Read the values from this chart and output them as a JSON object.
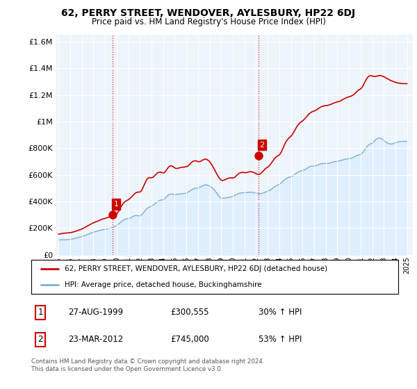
{
  "title": "62, PERRY STREET, WENDOVER, AYLESBURY, HP22 6DJ",
  "subtitle": "Price paid vs. HM Land Registry's House Price Index (HPI)",
  "hpi_line_color": "#7bafd4",
  "hpi_fill_color": "#ddeeff",
  "price_line_color": "#cc0000",
  "marker_color": "#cc0000",
  "background_color": "#ffffff",
  "plot_bg_color": "#eef4fb",
  "grid_color": "#ffffff",
  "ylim": [
    0,
    1650000
  ],
  "yticks": [
    0,
    200000,
    400000,
    600000,
    800000,
    1000000,
    1200000,
    1400000,
    1600000
  ],
  "ytick_labels": [
    "£0",
    "£200K",
    "£400K",
    "£600K",
    "£800K",
    "£1M",
    "£1.2M",
    "£1.4M",
    "£1.6M"
  ],
  "sale1_year": 1999.65,
  "sale1_price": 300555,
  "sale2_year": 2012.22,
  "sale2_price": 745000,
  "legend_line1": "62, PERRY STREET, WENDOVER, AYLESBURY, HP22 6DJ (detached house)",
  "legend_line2": "HPI: Average price, detached house, Buckinghamshire",
  "table_rows": [
    {
      "num": "1",
      "date": "27-AUG-1999",
      "price": "£300,555",
      "hpi": "30% ↑ HPI"
    },
    {
      "num": "2",
      "date": "23-MAR-2012",
      "price": "£745,000",
      "hpi": "53% ↑ HPI"
    }
  ],
  "footer": "Contains HM Land Registry data © Crown copyright and database right 2024.\nThis data is licensed under the Open Government Licence v3.0.",
  "hpi_data_x": [
    1995.0,
    1995.08,
    1995.17,
    1995.25,
    1995.33,
    1995.42,
    1995.5,
    1995.58,
    1995.67,
    1995.75,
    1995.83,
    1995.92,
    1996.0,
    1996.08,
    1996.17,
    1996.25,
    1996.33,
    1996.42,
    1996.5,
    1996.58,
    1996.67,
    1996.75,
    1996.83,
    1996.92,
    1997.0,
    1997.08,
    1997.17,
    1997.25,
    1997.33,
    1997.42,
    1997.5,
    1997.58,
    1997.67,
    1997.75,
    1997.83,
    1997.92,
    1998.0,
    1998.08,
    1998.17,
    1998.25,
    1998.33,
    1998.42,
    1998.5,
    1998.58,
    1998.67,
    1998.75,
    1998.83,
    1998.92,
    1999.0,
    1999.08,
    1999.17,
    1999.25,
    1999.33,
    1999.42,
    1999.5,
    1999.58,
    1999.67,
    1999.75,
    1999.83,
    1999.92,
    2000.0,
    2000.08,
    2000.17,
    2000.25,
    2000.33,
    2000.42,
    2000.5,
    2000.58,
    2000.67,
    2000.75,
    2000.83,
    2000.92,
    2001.0,
    2001.08,
    2001.17,
    2001.25,
    2001.33,
    2001.42,
    2001.5,
    2001.58,
    2001.67,
    2001.75,
    2001.83,
    2001.92,
    2002.0,
    2002.08,
    2002.17,
    2002.25,
    2002.33,
    2002.42,
    2002.5,
    2002.58,
    2002.67,
    2002.75,
    2002.83,
    2002.92,
    2003.0,
    2003.08,
    2003.17,
    2003.25,
    2003.33,
    2003.42,
    2003.5,
    2003.58,
    2003.67,
    2003.75,
    2003.83,
    2003.92,
    2004.0,
    2004.08,
    2004.17,
    2004.25,
    2004.33,
    2004.42,
    2004.5,
    2004.58,
    2004.67,
    2004.75,
    2004.83,
    2004.92,
    2005.0,
    2005.08,
    2005.17,
    2005.25,
    2005.33,
    2005.42,
    2005.5,
    2005.58,
    2005.67,
    2005.75,
    2005.83,
    2005.92,
    2006.0,
    2006.08,
    2006.17,
    2006.25,
    2006.33,
    2006.42,
    2006.5,
    2006.58,
    2006.67,
    2006.75,
    2006.83,
    2006.92,
    2007.0,
    2007.08,
    2007.17,
    2007.25,
    2007.33,
    2007.42,
    2007.5,
    2007.58,
    2007.67,
    2007.75,
    2007.83,
    2007.92,
    2008.0,
    2008.08,
    2008.17,
    2008.25,
    2008.33,
    2008.42,
    2008.5,
    2008.58,
    2008.67,
    2008.75,
    2008.83,
    2008.92,
    2009.0,
    2009.08,
    2009.17,
    2009.25,
    2009.33,
    2009.42,
    2009.5,
    2009.58,
    2009.67,
    2009.75,
    2009.83,
    2009.92,
    2010.0,
    2010.08,
    2010.17,
    2010.25,
    2010.33,
    2010.42,
    2010.5,
    2010.58,
    2010.67,
    2010.75,
    2010.83,
    2010.92,
    2011.0,
    2011.08,
    2011.17,
    2011.25,
    2011.33,
    2011.42,
    2011.5,
    2011.58,
    2011.67,
    2011.75,
    2011.83,
    2011.92,
    2012.0,
    2012.08,
    2012.17,
    2012.25,
    2012.33,
    2012.42,
    2012.5,
    2012.58,
    2012.67,
    2012.75,
    2012.83,
    2012.92,
    2013.0,
    2013.08,
    2013.17,
    2013.25,
    2013.33,
    2013.42,
    2013.5,
    2013.58,
    2013.67,
    2013.75,
    2013.83,
    2013.92,
    2014.0,
    2014.08,
    2014.17,
    2014.25,
    2014.33,
    2014.42,
    2014.5,
    2014.58,
    2014.67,
    2014.75,
    2014.83,
    2014.92,
    2015.0,
    2015.08,
    2015.17,
    2015.25,
    2015.33,
    2015.42,
    2015.5,
    2015.58,
    2015.67,
    2015.75,
    2015.83,
    2015.92,
    2016.0,
    2016.08,
    2016.17,
    2016.25,
    2016.33,
    2016.42,
    2016.5,
    2016.58,
    2016.67,
    2016.75,
    2016.83,
    2016.92,
    2017.0,
    2017.08,
    2017.17,
    2017.25,
    2017.33,
    2017.42,
    2017.5,
    2017.58,
    2017.67,
    2017.75,
    2017.83,
    2017.92,
    2018.0,
    2018.08,
    2018.17,
    2018.25,
    2018.33,
    2018.42,
    2018.5,
    2018.58,
    2018.67,
    2018.75,
    2018.83,
    2018.92,
    2019.0,
    2019.08,
    2019.17,
    2019.25,
    2019.33,
    2019.42,
    2019.5,
    2019.58,
    2019.67,
    2019.75,
    2019.83,
    2019.92,
    2020.0,
    2020.08,
    2020.17,
    2020.25,
    2020.33,
    2020.42,
    2020.5,
    2020.58,
    2020.67,
    2020.75,
    2020.83,
    2020.92,
    2021.0,
    2021.08,
    2021.17,
    2021.25,
    2021.33,
    2021.42,
    2021.5,
    2021.58,
    2021.67,
    2021.75,
    2021.83,
    2021.92,
    2022.0,
    2022.08,
    2022.17,
    2022.25,
    2022.33,
    2022.42,
    2022.5,
    2022.58,
    2022.67,
    2022.75,
    2022.83,
    2022.92,
    2023.0,
    2023.08,
    2023.17,
    2023.25,
    2023.33,
    2023.42,
    2023.5,
    2023.58,
    2023.67,
    2023.75,
    2023.83,
    2023.92,
    2024.0,
    2024.08,
    2024.17,
    2024.25,
    2024.33,
    2024.42,
    2024.5,
    2024.58,
    2024.67,
    2024.75,
    2024.83,
    2024.92,
    2025.0
  ],
  "hpi_data_y": [
    112000,
    112500,
    113000,
    113200,
    113000,
    112800,
    112500,
    112800,
    113200,
    113800,
    114200,
    115000,
    116000,
    117000,
    118500,
    120000,
    121500,
    123000,
    125000,
    127000,
    129000,
    131000,
    133000,
    135000,
    137000,
    139000,
    141500,
    144000,
    147000,
    150000,
    153000,
    156000,
    159000,
    162000,
    165000,
    168000,
    170000,
    172000,
    174000,
    176000,
    178000,
    180000,
    182000,
    184000,
    186000,
    188000,
    189000,
    190000,
    191000,
    192500,
    194000,
    196000,
    198000,
    200000,
    202000,
    204000,
    207000,
    210000,
    213000,
    216000,
    220000,
    226000,
    232000,
    238000,
    244000,
    250000,
    256000,
    261000,
    265000,
    268000,
    270000,
    271000,
    272000,
    274000,
    277000,
    281000,
    285000,
    289000,
    292000,
    294000,
    295000,
    295000,
    294000,
    292000,
    292000,
    296000,
    302000,
    310000,
    319000,
    328000,
    337000,
    345000,
    351000,
    356000,
    360000,
    363000,
    366000,
    370000,
    375000,
    381000,
    387000,
    393000,
    398000,
    403000,
    407000,
    410000,
    412000,
    413000,
    414000,
    418000,
    424000,
    432000,
    440000,
    447000,
    452000,
    455000,
    456000,
    456000,
    455000,
    453000,
    452000,
    452000,
    453000,
    454000,
    455000,
    456000,
    457000,
    458000,
    459000,
    460000,
    461000,
    462000,
    464000,
    467000,
    471000,
    476000,
    481000,
    486000,
    490000,
    494000,
    497000,
    499000,
    500000,
    501000,
    502000,
    504000,
    507000,
    511000,
    515000,
    519000,
    522000,
    524000,
    525000,
    524000,
    522000,
    519000,
    516000,
    512000,
    507000,
    501000,
    494000,
    486000,
    477000,
    467000,
    456000,
    446000,
    437000,
    430000,
    426000,
    424000,
    424000,
    425000,
    426000,
    428000,
    429000,
    430000,
    431000,
    432000,
    434000,
    436000,
    438000,
    441000,
    445000,
    449000,
    453000,
    457000,
    460000,
    462000,
    464000,
    465000,
    466000,
    466000,
    466000,
    466000,
    467000,
    468000,
    469000,
    470000,
    470000,
    470000,
    469000,
    468000,
    467000,
    465000,
    463000,
    461000,
    459000,
    458000,
    458000,
    459000,
    461000,
    463000,
    466000,
    469000,
    472000,
    475000,
    477000,
    480000,
    484000,
    488000,
    493000,
    498000,
    504000,
    510000,
    515000,
    519000,
    523000,
    526000,
    529000,
    534000,
    540000,
    547000,
    554000,
    561000,
    567000,
    572000,
    576000,
    579000,
    582000,
    584000,
    586000,
    589000,
    593000,
    598000,
    603000,
    609000,
    614000,
    619000,
    623000,
    626000,
    629000,
    631000,
    632000,
    634000,
    637000,
    641000,
    646000,
    651000,
    656000,
    660000,
    663000,
    665000,
    666000,
    666000,
    666000,
    667000,
    669000,
    672000,
    675000,
    678000,
    681000,
    683000,
    684000,
    685000,
    685000,
    685000,
    685000,
    685000,
    686000,
    687000,
    689000,
    691000,
    693000,
    695000,
    697000,
    699000,
    700000,
    701000,
    702000,
    703000,
    705000,
    707000,
    709000,
    711000,
    713000,
    715000,
    717000,
    718000,
    720000,
    721000,
    722000,
    723000,
    725000,
    727000,
    730000,
    733000,
    737000,
    741000,
    745000,
    748000,
    750000,
    751000,
    753000,
    758000,
    765000,
    774000,
    784000,
    795000,
    806000,
    815000,
    822000,
    828000,
    832000,
    835000,
    838000,
    843000,
    850000,
    858000,
    866000,
    872000,
    876000,
    877000,
    876000,
    873000,
    869000,
    864000,
    858000,
    852000,
    847000,
    842000,
    838000,
    835000,
    833000,
    832000,
    832000,
    833000,
    835000,
    838000,
    840000,
    843000,
    845000,
    847000,
    849000,
    850000,
    851000,
    851000,
    851000,
    851000,
    851000,
    851000,
    851000
  ],
  "price_data_x": [
    1995.0,
    1995.08,
    1995.17,
    1995.25,
    1995.33,
    1995.42,
    1995.5,
    1995.58,
    1995.67,
    1995.75,
    1995.83,
    1995.92,
    1996.0,
    1996.08,
    1996.17,
    1996.25,
    1996.33,
    1996.42,
    1996.5,
    1996.58,
    1996.67,
    1996.75,
    1996.83,
    1996.92,
    1997.0,
    1997.08,
    1997.17,
    1997.25,
    1997.33,
    1997.42,
    1997.5,
    1997.58,
    1997.67,
    1997.75,
    1997.83,
    1997.92,
    1998.0,
    1998.08,
    1998.17,
    1998.25,
    1998.33,
    1998.42,
    1998.5,
    1998.58,
    1998.67,
    1998.75,
    1998.83,
    1998.92,
    1999.0,
    1999.08,
    1999.17,
    1999.25,
    1999.33,
    1999.42,
    1999.5,
    1999.58,
    1999.67,
    1999.75,
    1999.83,
    1999.92,
    2000.0,
    2000.08,
    2000.17,
    2000.25,
    2000.33,
    2000.42,
    2000.5,
    2000.58,
    2000.67,
    2000.75,
    2000.83,
    2000.92,
    2001.0,
    2001.08,
    2001.17,
    2001.25,
    2001.33,
    2001.42,
    2001.5,
    2001.58,
    2001.67,
    2001.75,
    2001.83,
    2001.92,
    2002.0,
    2002.08,
    2002.17,
    2002.25,
    2002.33,
    2002.42,
    2002.5,
    2002.58,
    2002.67,
    2002.75,
    2002.83,
    2002.92,
    2003.0,
    2003.08,
    2003.17,
    2003.25,
    2003.33,
    2003.42,
    2003.5,
    2003.58,
    2003.67,
    2003.75,
    2003.83,
    2003.92,
    2004.0,
    2004.08,
    2004.17,
    2004.25,
    2004.33,
    2004.42,
    2004.5,
    2004.58,
    2004.67,
    2004.75,
    2004.83,
    2004.92,
    2005.0,
    2005.08,
    2005.17,
    2005.25,
    2005.33,
    2005.42,
    2005.5,
    2005.58,
    2005.67,
    2005.75,
    2005.83,
    2005.92,
    2006.0,
    2006.08,
    2006.17,
    2006.25,
    2006.33,
    2006.42,
    2006.5,
    2006.58,
    2006.67,
    2006.75,
    2006.83,
    2006.92,
    2007.0,
    2007.08,
    2007.17,
    2007.25,
    2007.33,
    2007.42,
    2007.5,
    2007.58,
    2007.67,
    2007.75,
    2007.83,
    2007.92,
    2008.0,
    2008.08,
    2008.17,
    2008.25,
    2008.33,
    2008.42,
    2008.5,
    2008.58,
    2008.67,
    2008.75,
    2008.83,
    2008.92,
    2009.0,
    2009.08,
    2009.17,
    2009.25,
    2009.33,
    2009.42,
    2009.5,
    2009.58,
    2009.67,
    2009.75,
    2009.83,
    2009.92,
    2010.0,
    2010.08,
    2010.17,
    2010.25,
    2010.33,
    2010.42,
    2010.5,
    2010.58,
    2010.67,
    2010.75,
    2010.83,
    2010.92,
    2011.0,
    2011.08,
    2011.17,
    2011.25,
    2011.33,
    2011.42,
    2011.5,
    2011.58,
    2011.67,
    2011.75,
    2011.83,
    2011.92,
    2012.0,
    2012.08,
    2012.17,
    2012.25,
    2012.33,
    2012.42,
    2012.5,
    2012.58,
    2012.67,
    2012.75,
    2012.83,
    2012.92,
    2013.0,
    2013.08,
    2013.17,
    2013.25,
    2013.33,
    2013.42,
    2013.5,
    2013.58,
    2013.67,
    2013.75,
    2013.83,
    2013.92,
    2014.0,
    2014.08,
    2014.17,
    2014.25,
    2014.33,
    2014.42,
    2014.5,
    2014.58,
    2014.67,
    2014.75,
    2014.83,
    2014.92,
    2015.0,
    2015.08,
    2015.17,
    2015.25,
    2015.33,
    2015.42,
    2015.5,
    2015.58,
    2015.67,
    2015.75,
    2015.83,
    2015.92,
    2016.0,
    2016.08,
    2016.17,
    2016.25,
    2016.33,
    2016.42,
    2016.5,
    2016.58,
    2016.67,
    2016.75,
    2016.83,
    2016.92,
    2017.0,
    2017.08,
    2017.17,
    2017.25,
    2017.33,
    2017.42,
    2017.5,
    2017.58,
    2017.67,
    2017.75,
    2017.83,
    2017.92,
    2018.0,
    2018.08,
    2018.17,
    2018.25,
    2018.33,
    2018.42,
    2018.5,
    2018.58,
    2018.67,
    2018.75,
    2018.83,
    2018.92,
    2019.0,
    2019.08,
    2019.17,
    2019.25,
    2019.33,
    2019.42,
    2019.5,
    2019.58,
    2019.67,
    2019.75,
    2019.83,
    2019.92,
    2020.0,
    2020.08,
    2020.17,
    2020.25,
    2020.33,
    2020.42,
    2020.5,
    2020.58,
    2020.67,
    2020.75,
    2020.83,
    2020.92,
    2021.0,
    2021.08,
    2021.17,
    2021.25,
    2021.33,
    2021.42,
    2021.5,
    2021.58,
    2021.67,
    2021.75,
    2021.83,
    2021.92,
    2022.0,
    2022.08,
    2022.17,
    2022.25,
    2022.33,
    2022.42,
    2022.5,
    2022.58,
    2022.67,
    2022.75,
    2022.83,
    2022.92,
    2023.0,
    2023.08,
    2023.17,
    2023.25,
    2023.33,
    2023.42,
    2023.5,
    2023.58,
    2023.67,
    2023.75,
    2023.83,
    2023.92,
    2024.0,
    2024.08,
    2024.17,
    2024.25,
    2024.33,
    2024.42,
    2024.5,
    2024.58,
    2024.67,
    2024.75,
    2024.83,
    2024.92,
    2025.0
  ],
  "price_data_y": [
    155000,
    156000,
    157500,
    159000,
    160500,
    161500,
    162500,
    163000,
    163500,
    164000,
    164500,
    165000,
    166000,
    167500,
    169000,
    171000,
    173000,
    175000,
    177500,
    180000,
    182500,
    185000,
    188000,
    191000,
    194000,
    197500,
    201000,
    205000,
    209000,
    213000,
    217000,
    221000,
    225000,
    229000,
    233000,
    237000,
    240000,
    243000,
    246000,
    249000,
    252000,
    255000,
    258000,
    261000,
    264000,
    267000,
    269000,
    271000,
    273000,
    275000,
    277500,
    280000,
    283000,
    286000,
    289000,
    292000,
    295000,
    298000,
    301000,
    303000,
    307000,
    316000,
    328000,
    341000,
    354000,
    367000,
    378000,
    388000,
    396000,
    402000,
    407000,
    410000,
    413000,
    418000,
    425000,
    432000,
    440000,
    448000,
    455000,
    461000,
    466000,
    469000,
    471000,
    471000,
    471000,
    476000,
    486000,
    501000,
    518000,
    535000,
    551000,
    564000,
    573000,
    578000,
    580000,
    579000,
    578000,
    580000,
    585000,
    592000,
    600000,
    607000,
    613000,
    617000,
    620000,
    621000,
    620000,
    617000,
    614000,
    616000,
    622000,
    632000,
    643000,
    653000,
    661000,
    666000,
    668000,
    667000,
    663000,
    658000,
    652000,
    649000,
    648000,
    649000,
    651000,
    653000,
    655000,
    656000,
    657000,
    658000,
    659000,
    660000,
    661000,
    664000,
    669000,
    676000,
    683000,
    691000,
    697000,
    702000,
    705000,
    706000,
    705000,
    703000,
    700000,
    699000,
    700000,
    703000,
    707000,
    712000,
    716000,
    718000,
    718000,
    716000,
    712000,
    706000,
    699000,
    690000,
    679000,
    667000,
    654000,
    641000,
    627000,
    613000,
    599000,
    587000,
    576000,
    567000,
    561000,
    558000,
    558000,
    561000,
    564000,
    568000,
    571000,
    574000,
    576000,
    577000,
    577000,
    577000,
    576000,
    578000,
    582000,
    589000,
    596000,
    603000,
    609000,
    613000,
    616000,
    618000,
    619000,
    618000,
    617000,
    616000,
    617000,
    619000,
    621000,
    623000,
    624000,
    624000,
    622000,
    620000,
    617000,
    613000,
    609000,
    606000,
    604000,
    604000,
    607000,
    612000,
    618000,
    626000,
    634000,
    641000,
    648000,
    654000,
    658000,
    664000,
    671000,
    680000,
    690000,
    701000,
    711000,
    721000,
    729000,
    736000,
    741000,
    745000,
    749000,
    758000,
    771000,
    787000,
    804000,
    821000,
    836000,
    849000,
    860000,
    869000,
    877000,
    884000,
    890000,
    898000,
    909000,
    921000,
    934000,
    948000,
    960000,
    971000,
    980000,
    988000,
    995000,
    1000000,
    1005000,
    1011000,
    1018000,
    1026000,
    1035000,
    1044000,
    1052000,
    1059000,
    1065000,
    1070000,
    1074000,
    1077000,
    1079000,
    1082000,
    1086000,
    1091000,
    1096000,
    1101000,
    1106000,
    1110000,
    1113000,
    1116000,
    1118000,
    1119000,
    1120000,
    1121000,
    1122000,
    1124000,
    1126000,
    1129000,
    1132000,
    1135000,
    1138000,
    1141000,
    1143000,
    1145000,
    1147000,
    1149000,
    1152000,
    1155000,
    1159000,
    1163000,
    1167000,
    1171000,
    1175000,
    1178000,
    1181000,
    1184000,
    1186000,
    1188000,
    1191000,
    1194000,
    1198000,
    1203000,
    1209000,
    1216000,
    1224000,
    1231000,
    1237000,
    1241000,
    1245000,
    1252000,
    1262000,
    1275000,
    1290000,
    1305000,
    1318000,
    1329000,
    1337000,
    1342000,
    1344000,
    1344000,
    1342000,
    1340000,
    1339000,
    1339000,
    1340000,
    1342000,
    1344000,
    1345000,
    1346000,
    1345000,
    1343000,
    1340000,
    1337000,
    1333000,
    1329000,
    1325000,
    1321000,
    1317000,
    1313000,
    1309000,
    1306000,
    1303000,
    1300000,
    1298000,
    1295000,
    1293000,
    1291000,
    1289000,
    1288000,
    1287000,
    1286000,
    1286000,
    1285000,
    1285000,
    1285000,
    1285000,
    1285000
  ],
  "xtick_years": [
    1995,
    1996,
    1997,
    1998,
    1999,
    2000,
    2001,
    2002,
    2003,
    2004,
    2005,
    2006,
    2007,
    2008,
    2009,
    2010,
    2011,
    2012,
    2013,
    2014,
    2015,
    2016,
    2017,
    2018,
    2019,
    2020,
    2021,
    2022,
    2023,
    2024,
    2025
  ]
}
